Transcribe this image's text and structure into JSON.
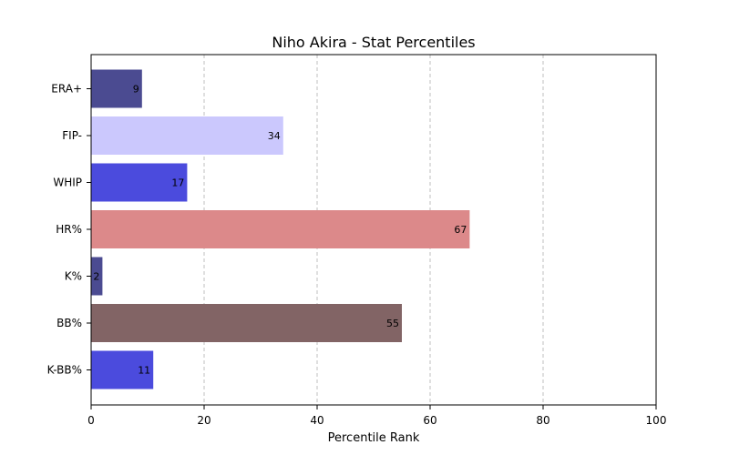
{
  "chart_data": {
    "type": "bar",
    "orientation": "horizontal",
    "title": "Niho Akira - Stat Percentiles",
    "xlabel": "Percentile Rank",
    "ylabel": "",
    "xlim": [
      0,
      100
    ],
    "x_ticks": [
      0,
      20,
      40,
      60,
      80,
      100
    ],
    "grid": "x-axis dashed",
    "categories": [
      "ERA+",
      "FIP-",
      "WHIP",
      "HR%",
      "K%",
      "BB%",
      "K-BB%"
    ],
    "values": [
      9,
      34,
      17,
      67,
      2,
      55,
      11
    ],
    "colors": [
      "#4b4b91",
      "#cbc8fd",
      "#4b4bdd",
      "#dc898a",
      "#4b4b91",
      "#826465",
      "#4b4bdd"
    ]
  }
}
